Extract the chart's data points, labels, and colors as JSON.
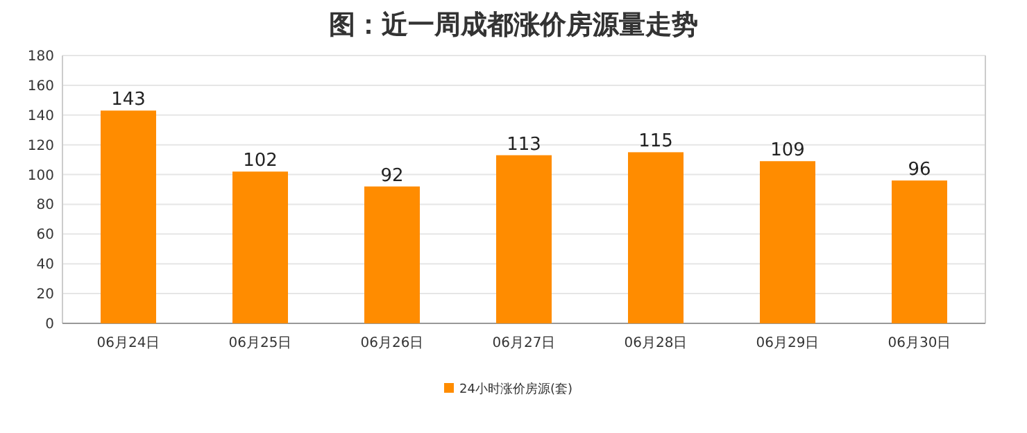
{
  "chart_data": {
    "type": "bar",
    "title": "图：近一周成都涨价房源量走势",
    "categories": [
      "06月24日",
      "06月25日",
      "06月26日",
      "06月27日",
      "06月28日",
      "06月29日",
      "06月30日"
    ],
    "series": [
      {
        "name": "24小时涨价房源(套)",
        "color": "#ff8c00",
        "values": [
          143,
          102,
          92,
          113,
          115,
          109,
          96
        ]
      }
    ],
    "ylim": [
      0,
      180
    ],
    "yticks": [
      0,
      20,
      40,
      60,
      80,
      100,
      120,
      140,
      160,
      180
    ],
    "grid": "y",
    "legend": "bottom",
    "data_labels": true
  }
}
